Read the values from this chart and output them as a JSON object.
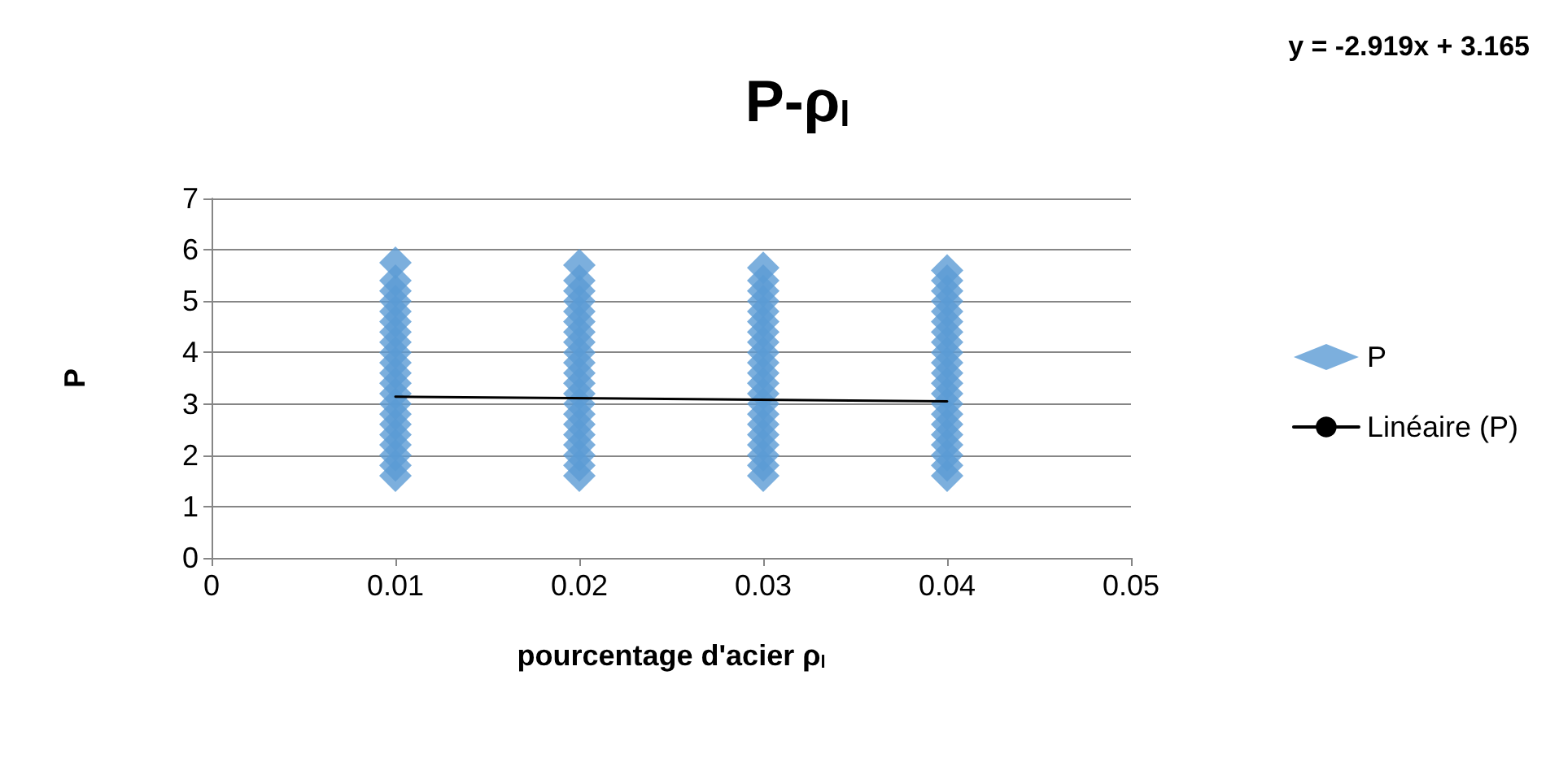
{
  "chart_data": {
    "type": "scatter",
    "title": "P-ρ$_{l}$",
    "xlabel": "pourcentage d'acier ρ$_{l}$",
    "ylabel": "P",
    "annotations": [
      "y = -2.919x + 3.165"
    ],
    "xlim": [
      0,
      0.05
    ],
    "xticks": [
      0,
      0.01,
      0.02,
      0.03,
      0.04,
      0.05
    ],
    "ylim": [
      0,
      7
    ],
    "yticks": [
      0,
      1,
      2,
      3,
      4,
      5,
      6,
      7
    ],
    "grid": "y",
    "legend": "right",
    "marker": "diamond",
    "series": [
      {
        "name": "P",
        "color": "#5b9bd5",
        "x": [
          0.01,
          0.01,
          0.01,
          0.01,
          0.01,
          0.01,
          0.01,
          0.01,
          0.01,
          0.01,
          0.01,
          0.01,
          0.01,
          0.01,
          0.01,
          0.01,
          0.01,
          0.01,
          0.01,
          0.01,
          0.01,
          0.02,
          0.02,
          0.02,
          0.02,
          0.02,
          0.02,
          0.02,
          0.02,
          0.02,
          0.02,
          0.02,
          0.02,
          0.02,
          0.02,
          0.02,
          0.02,
          0.02,
          0.02,
          0.02,
          0.02,
          0.02,
          0.03,
          0.03,
          0.03,
          0.03,
          0.03,
          0.03,
          0.03,
          0.03,
          0.03,
          0.03,
          0.03,
          0.03,
          0.03,
          0.03,
          0.03,
          0.03,
          0.03,
          0.03,
          0.03,
          0.03,
          0.03,
          0.04,
          0.04,
          0.04,
          0.04,
          0.04,
          0.04,
          0.04,
          0.04,
          0.04,
          0.04,
          0.04,
          0.04,
          0.04,
          0.04,
          0.04,
          0.04,
          0.04,
          0.04,
          0.04,
          0.04,
          0.04
        ],
        "values": [
          1.6,
          1.8,
          2.0,
          2.2,
          2.4,
          2.6,
          2.8,
          3.0,
          3.2,
          3.4,
          3.6,
          3.8,
          4.0,
          4.2,
          4.4,
          4.6,
          4.8,
          5.0,
          5.2,
          5.4,
          5.75,
          1.6,
          1.8,
          2.0,
          2.2,
          2.4,
          2.6,
          2.8,
          3.0,
          3.2,
          3.4,
          3.6,
          3.8,
          4.0,
          4.2,
          4.4,
          4.6,
          4.8,
          5.0,
          5.2,
          5.4,
          5.7,
          1.6,
          1.8,
          2.0,
          2.2,
          2.4,
          2.6,
          2.8,
          3.0,
          3.2,
          3.4,
          3.6,
          3.8,
          4.0,
          4.2,
          4.4,
          4.6,
          4.8,
          5.0,
          5.2,
          5.4,
          5.65,
          1.6,
          1.8,
          2.0,
          2.2,
          2.4,
          2.6,
          2.8,
          3.0,
          3.2,
          3.4,
          3.6,
          3.8,
          4.0,
          4.2,
          4.4,
          4.6,
          4.8,
          5.0,
          5.2,
          5.4,
          5.6
        ]
      },
      {
        "name": "Linéaire (P)",
        "type": "line",
        "color": "#000000",
        "marker": "none",
        "x": [
          0.01,
          0.04
        ],
        "values": [
          3.14,
          3.05
        ]
      }
    ]
  }
}
